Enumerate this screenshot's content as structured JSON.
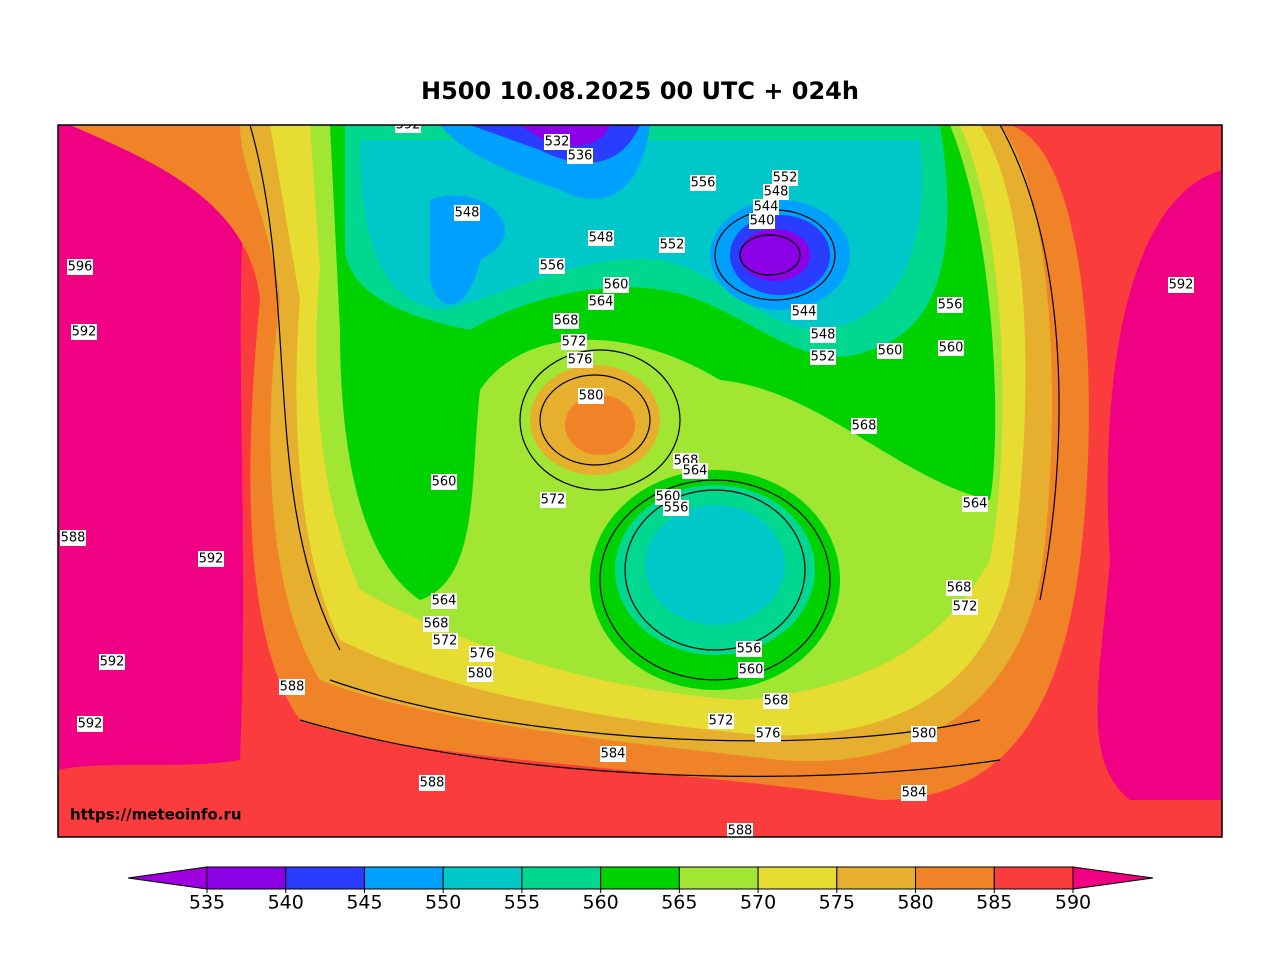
{
  "title": "H500  10.08.2025 00 UTC + 024h",
  "watermark": "https://meteoinfo.ru",
  "contour_labels": [
    592,
    532,
    536,
    556,
    552,
    548,
    544,
    540,
    548,
    548,
    552,
    556,
    596,
    592,
    560,
    564,
    556,
    568,
    544,
    548,
    592,
    572,
    552,
    560,
    560,
    576,
    580,
    568,
    568,
    564,
    560,
    560,
    556,
    572,
    564,
    588,
    592,
    568,
    564,
    572,
    568,
    572,
    556,
    576,
    592,
    560,
    580,
    588,
    568,
    572,
    592,
    576,
    580,
    584,
    588,
    584,
    588
  ],
  "colorbar": {
    "ticks": [
      535,
      540,
      545,
      550,
      555,
      560,
      565,
      570,
      575,
      580,
      585,
      590
    ],
    "colors": [
      "#a000e0",
      "#8c00e6",
      "#2a3cff",
      "#00a0ff",
      "#00c8c8",
      "#00d890",
      "#00d200",
      "#a0e632",
      "#e6dc32",
      "#e6af2d",
      "#f08228",
      "#fa3c3c",
      "#f00082"
    ]
  }
}
